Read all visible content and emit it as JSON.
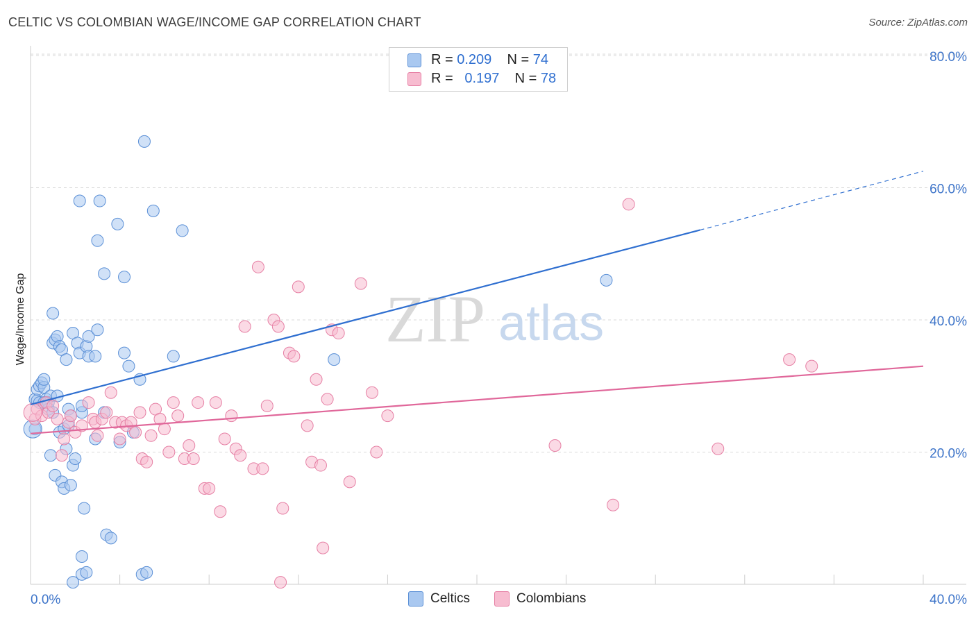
{
  "title": "CELTIC VS COLOMBIAN WAGE/INCOME GAP CORRELATION CHART",
  "source": "Source: ZipAtlas.com",
  "watermark": {
    "zip": "ZIP",
    "atlas": "atlas"
  },
  "legend": {
    "rows": [
      {
        "r_label": "R =",
        "r_value": "0.209",
        "n_label": "N =",
        "n_value": "74"
      },
      {
        "r_label": "R =",
        "r_value": "0.197",
        "n_label": "N =",
        "n_value": "78"
      }
    ]
  },
  "bottom_legend": [
    "Celtics",
    "Colombians"
  ],
  "colors": {
    "celtics_fill": "#a9c8f0",
    "celtics_stroke": "#5a8fd6",
    "celtics_line": "#2f6fd0",
    "colombians_fill": "#f7bcd0",
    "colombians_stroke": "#e67fa4",
    "colombians_line": "#e0679a",
    "tick_label": "#3d74c9",
    "grid": "#d9d9d9"
  },
  "chart_data": {
    "type": "scatter",
    "title": "CELTIC VS COLOMBIAN WAGE/INCOME GAP CORRELATION CHART",
    "xlabel": "",
    "ylabel": "Wage/Income Gap",
    "xlim": [
      0,
      40
    ],
    "ylim": [
      0,
      80
    ],
    "x_tick_labels": [
      "0.0%",
      "40.0%"
    ],
    "y_ticks": [
      20,
      40,
      60,
      80
    ],
    "y_tick_labels": [
      "20.0%",
      "40.0%",
      "60.0%",
      "80.0%"
    ],
    "grid": true,
    "series": [
      {
        "name": "Celtics",
        "r": 0.209,
        "n": 74,
        "trend": {
          "x0": 0,
          "y0": 27.2,
          "x1": 30,
          "y1": 53.6,
          "dash_to_x": 40,
          "dash_to_y": 62.5
        },
        "points": [
          [
            0.2,
            23.5
          ],
          [
            0.2,
            28.0
          ],
          [
            0.3,
            27.8
          ],
          [
            0.3,
            29.5
          ],
          [
            0.4,
            30.0
          ],
          [
            0.4,
            27.5
          ],
          [
            0.5,
            30.5
          ],
          [
            0.6,
            29.8
          ],
          [
            0.6,
            31.0
          ],
          [
            0.7,
            28.0
          ],
          [
            0.8,
            27.5
          ],
          [
            0.8,
            26.5
          ],
          [
            0.9,
            28.5
          ],
          [
            0.9,
            19.5
          ],
          [
            1.0,
            41.0
          ],
          [
            1.0,
            36.5
          ],
          [
            1.1,
            37.0
          ],
          [
            1.1,
            16.5
          ],
          [
            1.2,
            37.5
          ],
          [
            1.2,
            28.5
          ],
          [
            1.3,
            23.0
          ],
          [
            1.3,
            36.0
          ],
          [
            1.4,
            35.5
          ],
          [
            1.4,
            15.5
          ],
          [
            1.5,
            14.5
          ],
          [
            1.5,
            23.5
          ],
          [
            1.6,
            34.0
          ],
          [
            1.6,
            20.5
          ],
          [
            1.7,
            26.5
          ],
          [
            1.7,
            24.0
          ],
          [
            1.8,
            25.5
          ],
          [
            1.8,
            15.0
          ],
          [
            1.9,
            38.0
          ],
          [
            1.9,
            18.0
          ],
          [
            2.0,
            19.0
          ],
          [
            2.1,
            36.5
          ],
          [
            2.2,
            35.0
          ],
          [
            2.3,
            26.0
          ],
          [
            2.3,
            27.0
          ],
          [
            2.4,
            11.5
          ],
          [
            2.5,
            36.0
          ],
          [
            2.6,
            34.5
          ],
          [
            2.6,
            37.5
          ],
          [
            2.9,
            22.0
          ],
          [
            2.9,
            34.5
          ],
          [
            3.0,
            38.5
          ],
          [
            3.0,
            52.0
          ],
          [
            3.1,
            58.0
          ],
          [
            3.3,
            47.0
          ],
          [
            3.4,
            7.5
          ],
          [
            3.6,
            7.0
          ],
          [
            3.9,
            54.5
          ],
          [
            4.0,
            21.5
          ],
          [
            4.2,
            46.5
          ],
          [
            4.2,
            35.0
          ],
          [
            4.4,
            33.0
          ],
          [
            4.6,
            23.0
          ],
          [
            4.9,
            31.0
          ],
          [
            5.1,
            67.0
          ],
          [
            5.5,
            56.5
          ],
          [
            6.4,
            34.5
          ],
          [
            6.8,
            53.5
          ],
          [
            2.2,
            58.0
          ],
          [
            2.3,
            1.5
          ],
          [
            2.5,
            1.8
          ],
          [
            5.0,
            1.5
          ],
          [
            5.2,
            1.8
          ],
          [
            1.9,
            0.3
          ],
          [
            2.3,
            4.2
          ],
          [
            13.6,
            34.0
          ],
          [
            25.8,
            46.0
          ],
          [
            0.6,
            27.5
          ],
          [
            1.0,
            26.0
          ],
          [
            3.3,
            26.0
          ]
        ]
      },
      {
        "name": "Colombians",
        "r": 0.197,
        "n": 78,
        "trend": {
          "x0": 0,
          "y0": 22.8,
          "x1": 40,
          "y1": 33.0
        },
        "points": [
          [
            0.2,
            25.0
          ],
          [
            0.3,
            26.5
          ],
          [
            0.5,
            25.5
          ],
          [
            0.7,
            27.5
          ],
          [
            0.8,
            26.0
          ],
          [
            1.0,
            27.0
          ],
          [
            1.2,
            25.0
          ],
          [
            1.4,
            19.5
          ],
          [
            1.5,
            22.0
          ],
          [
            1.7,
            24.5
          ],
          [
            1.8,
            25.5
          ],
          [
            2.0,
            23.0
          ],
          [
            2.3,
            24.0
          ],
          [
            2.6,
            27.5
          ],
          [
            2.8,
            25.0
          ],
          [
            2.9,
            24.5
          ],
          [
            3.0,
            22.5
          ],
          [
            3.2,
            25.0
          ],
          [
            3.4,
            26.0
          ],
          [
            3.6,
            29.0
          ],
          [
            3.8,
            24.5
          ],
          [
            4.0,
            22.0
          ],
          [
            4.1,
            24.5
          ],
          [
            4.3,
            24.0
          ],
          [
            4.5,
            24.5
          ],
          [
            4.7,
            23.0
          ],
          [
            4.9,
            26.0
          ],
          [
            5.0,
            19.0
          ],
          [
            5.2,
            18.5
          ],
          [
            5.4,
            22.5
          ],
          [
            5.6,
            26.5
          ],
          [
            5.8,
            25.0
          ],
          [
            6.0,
            23.5
          ],
          [
            6.2,
            20.0
          ],
          [
            6.4,
            27.5
          ],
          [
            6.6,
            25.5
          ],
          [
            6.9,
            19.0
          ],
          [
            7.1,
            21.0
          ],
          [
            7.3,
            19.0
          ],
          [
            7.5,
            27.5
          ],
          [
            7.8,
            14.5
          ],
          [
            8.0,
            14.5
          ],
          [
            8.3,
            27.5
          ],
          [
            8.5,
            11.0
          ],
          [
            8.7,
            22.0
          ],
          [
            9.0,
            25.5
          ],
          [
            9.2,
            20.5
          ],
          [
            9.4,
            19.5
          ],
          [
            9.6,
            39.0
          ],
          [
            10.0,
            17.5
          ],
          [
            10.2,
            48.0
          ],
          [
            10.4,
            17.5
          ],
          [
            10.6,
            27.0
          ],
          [
            10.9,
            40.0
          ],
          [
            11.1,
            39.0
          ],
          [
            11.3,
            11.5
          ],
          [
            11.6,
            35.0
          ],
          [
            11.8,
            34.5
          ],
          [
            12.0,
            45.0
          ],
          [
            12.4,
            24.0
          ],
          [
            12.6,
            18.5
          ],
          [
            12.8,
            31.0
          ],
          [
            13.0,
            18.0
          ],
          [
            13.3,
            28.0
          ],
          [
            13.5,
            38.5
          ],
          [
            13.8,
            38.0
          ],
          [
            14.3,
            15.5
          ],
          [
            14.8,
            45.5
          ],
          [
            15.3,
            29.0
          ],
          [
            15.5,
            20.0
          ],
          [
            16.0,
            25.5
          ],
          [
            11.2,
            0.3
          ],
          [
            13.1,
            5.5
          ],
          [
            26.1,
            12.0
          ],
          [
            23.5,
            21.0
          ],
          [
            26.8,
            57.5
          ],
          [
            30.8,
            20.5
          ],
          [
            34.0,
            34.0
          ],
          [
            35.0,
            33.0
          ]
        ]
      }
    ]
  }
}
